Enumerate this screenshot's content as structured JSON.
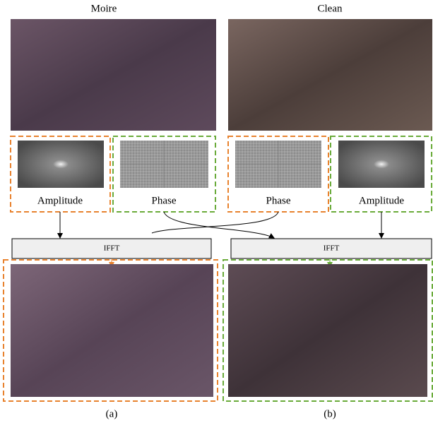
{
  "header": {
    "left_title": "Moire",
    "right_title": "Clean"
  },
  "inputs": [
    {
      "label": "Amplitude"
    },
    {
      "label": "Phase"
    },
    {
      "label": "Phase"
    },
    {
      "label": "Amplitude"
    }
  ],
  "ops": [
    {
      "label": "IFFT"
    },
    {
      "label": "IFFT"
    }
  ],
  "captions": [
    "(a)",
    "(b)"
  ]
}
